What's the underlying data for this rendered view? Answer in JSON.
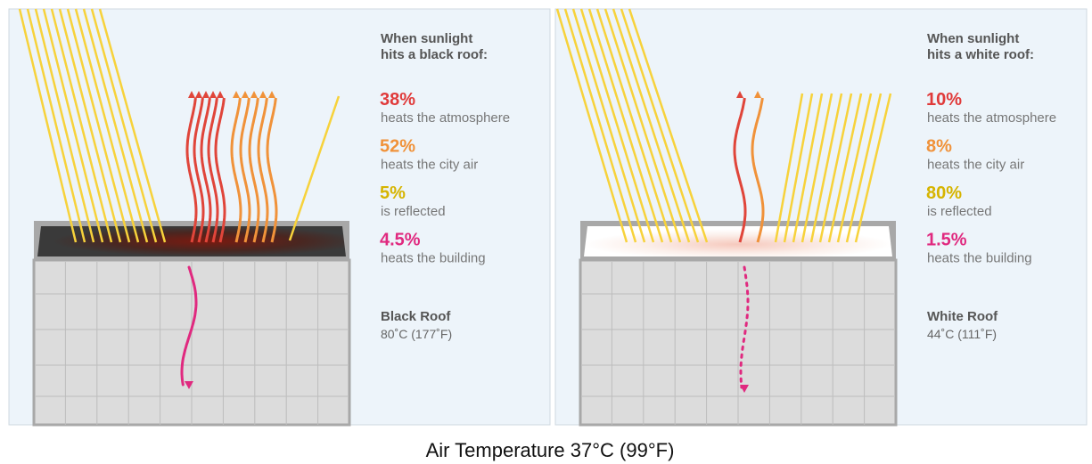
{
  "panels": [
    {
      "heading": [
        "When sunlight",
        "hits a black roof:"
      ],
      "items": [
        {
          "percent": "38%",
          "label": "heats the atmosphere"
        },
        {
          "percent": "52%",
          "label": "heats the city air"
        },
        {
          "percent": "5%",
          "label": "is reflected"
        },
        {
          "percent": "4.5%",
          "label": "heats the building"
        }
      ],
      "roof": {
        "name": "Black Roof",
        "temperature": "80˚C (177˚F)"
      }
    },
    {
      "heading": [
        "When sunlight",
        "hits a white roof:"
      ],
      "items": [
        {
          "percent": "10%",
          "label": "heats the atmosphere"
        },
        {
          "percent": "8%",
          "label": "heats the city air"
        },
        {
          "percent": "80%",
          "label": "is reflected"
        },
        {
          "percent": "1.5%",
          "label": "heats the building"
        }
      ],
      "roof": {
        "name": "White Roof",
        "temperature": "44˚C (111˚F)"
      }
    }
  ],
  "caption": "Air Temperature 37°C (99°F)"
}
